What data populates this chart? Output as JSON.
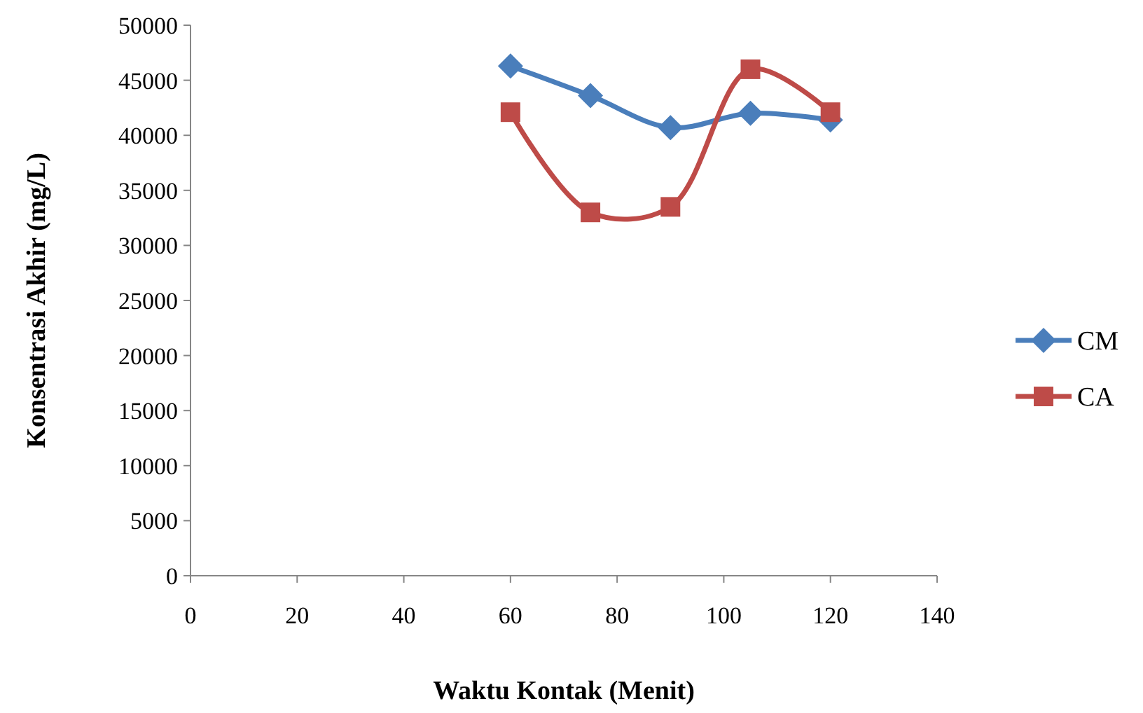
{
  "chart_data": {
    "type": "line",
    "xlabel": "Waktu Kontak (Menit)",
    "ylabel": "Konsentrasi Akhir (mg/L)",
    "x": [
      60,
      75,
      90,
      105,
      120
    ],
    "series": [
      {
        "name": "CM",
        "color": "#4a7ebb",
        "marker": "diamond",
        "values": [
          46300,
          43600,
          40700,
          42000,
          41400
        ]
      },
      {
        "name": "CA",
        "color": "#be4b48",
        "marker": "square",
        "values": [
          42100,
          33000,
          33500,
          46000,
          42100
        ]
      }
    ],
    "xlim": [
      0,
      140
    ],
    "xticks": [
      0,
      20,
      40,
      60,
      80,
      100,
      120,
      140
    ],
    "ylim": [
      0,
      50000
    ],
    "yticks": [
      0,
      5000,
      10000,
      15000,
      20000,
      25000,
      30000,
      35000,
      40000,
      45000,
      50000
    ],
    "grid": false,
    "legend": "right"
  }
}
